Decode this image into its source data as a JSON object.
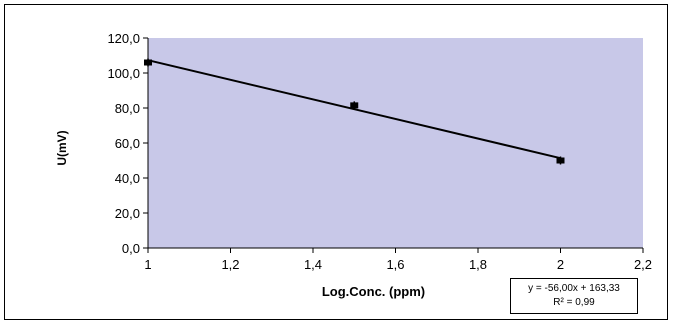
{
  "chart_data": {
    "type": "scatter",
    "title": "",
    "xlabel": "Log.Conc. (ppm)",
    "ylabel": "U(mV)",
    "xlim": [
      1,
      2.2
    ],
    "ylim": [
      0,
      120
    ],
    "x_ticks": [
      1,
      1.2,
      1.4,
      1.6,
      1.8,
      2,
      2.2
    ],
    "x_tick_labels": [
      "1",
      "1,2",
      "1,4",
      "1,6",
      "1,8",
      "2",
      "2,2"
    ],
    "y_ticks": [
      0,
      20,
      40,
      60,
      80,
      100,
      120
    ],
    "y_tick_labels": [
      "0,0",
      "20,0",
      "40,0",
      "60,0",
      "80,0",
      "100,0",
      "120,0"
    ],
    "series": [
      {
        "x": [
          1,
          1.5,
          2
        ],
        "y": [
          106.0,
          81.5,
          50.0
        ]
      }
    ],
    "trendline": {
      "slope": -56.0,
      "intercept": 163.33
    },
    "annotation": {
      "equation": "y = -56,00x + 163,33",
      "r_squared": "R² = 0,99"
    },
    "grid": false,
    "colors": {
      "plot_background": "#C8C8E8",
      "marker": "#000000",
      "line": "#000000"
    }
  }
}
